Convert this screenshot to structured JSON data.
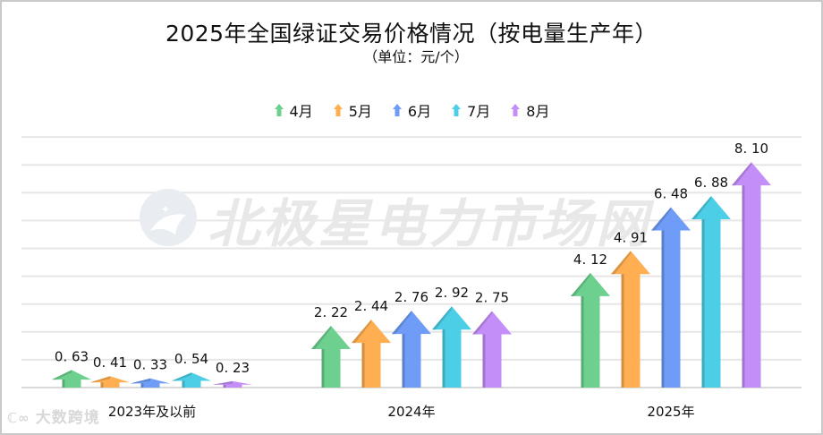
{
  "title": "2025年全国绿证交易价格情况（按电量生产年）",
  "subtitle": "（单位：元/个）",
  "watermark_center": "北极星电力市场网",
  "watermark_corner": "大数跨境",
  "legend": [
    {
      "label": "4月",
      "color": "#6dd08f",
      "icon": "up-arrow-icon"
    },
    {
      "label": "5月",
      "color": "#ffae52",
      "icon": "up-arrow-icon"
    },
    {
      "label": "6月",
      "color": "#6f9cf6",
      "icon": "up-arrow-icon"
    },
    {
      "label": "7月",
      "color": "#4ccfe6",
      "icon": "up-arrow-icon"
    },
    {
      "label": "8月",
      "color": "#c38ef7",
      "icon": "up-arrow-icon"
    }
  ],
  "chart_data": {
    "type": "bar",
    "title": "2025年全国绿证交易价格情况（按电量生产年）",
    "subtitle": "（单位：元/个）",
    "xlabel": "",
    "ylabel": "元/个",
    "categories": [
      "2023年及以前",
      "2024年",
      "2025年"
    ],
    "series": [
      {
        "name": "4月",
        "color": "#6dd08f",
        "values": [
          0.63,
          2.22,
          4.12
        ]
      },
      {
        "name": "5月",
        "color": "#ffae52",
        "values": [
          0.41,
          2.44,
          4.91
        ]
      },
      {
        "name": "6月",
        "color": "#6f9cf6",
        "values": [
          0.33,
          2.76,
          6.48
        ]
      },
      {
        "name": "7月",
        "color": "#4ccfe6",
        "values": [
          0.54,
          2.92,
          6.88
        ]
      },
      {
        "name": "8月",
        "color": "#c38ef7",
        "values": [
          0.23,
          2.75,
          8.1
        ]
      }
    ],
    "value_labels": [
      [
        "0.63",
        "0.41",
        "0.33",
        "0.54",
        "0.23"
      ],
      [
        "2.22",
        "2.44",
        "2.76",
        "2.92",
        "2.75"
      ],
      [
        "4.12",
        "4.91",
        "6.48",
        "6.88",
        "8.10"
      ]
    ],
    "ylim": [
      0,
      9
    ],
    "grid": true,
    "y_axis_visible": false,
    "legend_position": "top",
    "bar_style": "arrow"
  }
}
